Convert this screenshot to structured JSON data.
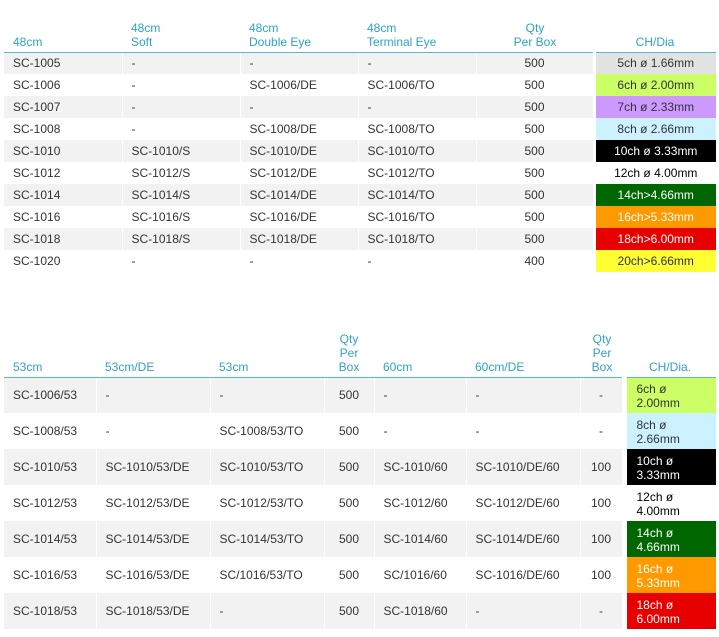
{
  "table1": {
    "headers": [
      [
        "48cm"
      ],
      [
        "48cm",
        "Soft"
      ],
      [
        "48cm",
        "Double Eye"
      ],
      [
        "48cm",
        "Terminal Eye"
      ],
      [
        "Qty",
        "Per Box"
      ],
      [
        "CH/Dia"
      ]
    ],
    "rows": [
      {
        "code": "SC-1005",
        "soft": "-",
        "de": "-",
        "te": "-",
        "qty": "500",
        "chdia": "5ch ø 1.66mm",
        "bg": "#e2e2e2",
        "fg": "#333333"
      },
      {
        "code": "SC-1006",
        "soft": "-",
        "de": "SC-1006/DE",
        "te": "SC-1006/TO",
        "qty": "500",
        "chdia": "6ch ø 2.00mm",
        "bg": "#ccff66",
        "fg": "#333333"
      },
      {
        "code": "SC-1007",
        "soft": "-",
        "de": "-",
        "te": "-",
        "qty": "500",
        "chdia": "7ch ø 2.33mm",
        "bg": "#cc99ff",
        "fg": "#333333"
      },
      {
        "code": "SC-1008",
        "soft": "-",
        "de": "SC-1008/DE",
        "te": "SC-1008/TO",
        "qty": "500",
        "chdia": "8ch ø 2.66mm",
        "bg": "#ccf2ff",
        "fg": "#333333"
      },
      {
        "code": "SC-1010",
        "soft": "SC-1010/S",
        "de": "SC-1010/DE",
        "te": "SC-1010/TO",
        "qty": "500",
        "chdia": "10ch ø 3.33mm",
        "bg": "#000000",
        "fg": "#ffffff"
      },
      {
        "code": "SC-1012",
        "soft": "SC-1012/S",
        "de": "SC-1012/DE",
        "te": "SC-1012/TO",
        "qty": "500",
        "chdia": "12ch ø 4.00mm",
        "bg": "#ffffff",
        "fg": "#000000"
      },
      {
        "code": "SC-1014",
        "soft": "SC-1014/S",
        "de": "SC-1014/DE",
        "te": "SC-1014/TO",
        "qty": "500",
        "chdia": "14ch>4.66mm",
        "bg": "#006600",
        "fg": "#ffffff"
      },
      {
        "code": "SC-1016",
        "soft": "SC-1016/S",
        "de": "SC-1016/DE",
        "te": "SC-1016/TO",
        "qty": "500",
        "chdia": "16ch>5.33mm",
        "bg": "#ff9900",
        "fg": "#ffffff"
      },
      {
        "code": "SC-1018",
        "soft": "SC-1018/S",
        "de": "SC-1018/DE",
        "te": "SC-1018/TO",
        "qty": "500",
        "chdia": "18ch>6.00mm",
        "bg": "#e60000",
        "fg": "#ffffff"
      },
      {
        "code": "SC-1020",
        "soft": "-",
        "de": "-",
        "te": "-",
        "qty": "400",
        "chdia": "20ch>6.66mm",
        "bg": "#ffff33",
        "fg": "#333333"
      }
    ]
  },
  "table2": {
    "headers": [
      [
        "53cm"
      ],
      [
        "53cm/DE"
      ],
      [
        "53cm"
      ],
      [
        "Qty",
        "Per",
        "Box"
      ],
      [
        "60cm"
      ],
      [
        "60cm/DE"
      ],
      [
        "Qty",
        "Per",
        "Box"
      ],
      [
        "CH/Dia."
      ]
    ],
    "rows": [
      {
        "c53": "SC-1006/53",
        "de53": "-",
        "to53": "-",
        "qty53": "500",
        "c60": "-",
        "de60": "-",
        "qty60": "-",
        "ch": "6ch ø",
        "dia": "2.00mm",
        "bg": "#ccff66",
        "fg": "#333333"
      },
      {
        "c53": "SC-1008/53",
        "de53": "-",
        "to53": "SC-1008/53/TO",
        "qty53": "500",
        "c60": "-",
        "de60": "-",
        "qty60": "-",
        "ch": "8ch ø",
        "dia": "2.66mm",
        "bg": "#ccf2ff",
        "fg": "#333333"
      },
      {
        "c53": "SC-1010/53",
        "de53": "SC-1010/53/DE",
        "to53": "SC-1010/53/TO",
        "qty53": "500",
        "c60": "SC-1010/60",
        "de60": "SC-1010/DE/60",
        "qty60": "100",
        "ch": "10ch ø",
        "dia": "3.33mm",
        "bg": "#000000",
        "fg": "#ffffff"
      },
      {
        "c53": "SC-1012/53",
        "de53": "SC-1012/53/DE",
        "to53": "SC-1012/53/TO",
        "qty53": "500",
        "c60": "SC-1012/60",
        "de60": "SC-1012/DE/60",
        "qty60": "100",
        "ch": "12ch ø",
        "dia": "4.00mm",
        "bg": "#ffffff",
        "fg": "#000000"
      },
      {
        "c53": "SC-1014/53",
        "de53": "SC-1014/53/DE",
        "to53": "SC-1014/53/TO",
        "qty53": "500",
        "c60": "SC-1014/60",
        "de60": "SC-1014/DE/60",
        "qty60": "100",
        "ch": "14ch ø",
        "dia": "4.66mm",
        "bg": "#006600",
        "fg": "#ffffff"
      },
      {
        "c53": "SC-1016/53",
        "de53": "SC-1016/53/DE",
        "to53": "SC/1016/53/TO",
        "qty53": "500",
        "c60": "SC/1016/60",
        "de60": "SC-1016/DE/60",
        "qty60": "100",
        "ch": "16ch ø",
        "dia": "5.33mm",
        "bg": "#ff9900",
        "fg": "#ffffff"
      },
      {
        "c53": "SC-1018/53",
        "de53": "SC-1018/53/DE",
        "to53": "-",
        "qty53": "500",
        "c60": "SC-1018/60",
        "de60": "-",
        "qty60": "-",
        "ch": "18ch ø",
        "dia": "6.00mm",
        "bg": "#e60000",
        "fg": "#ffffff"
      }
    ]
  }
}
